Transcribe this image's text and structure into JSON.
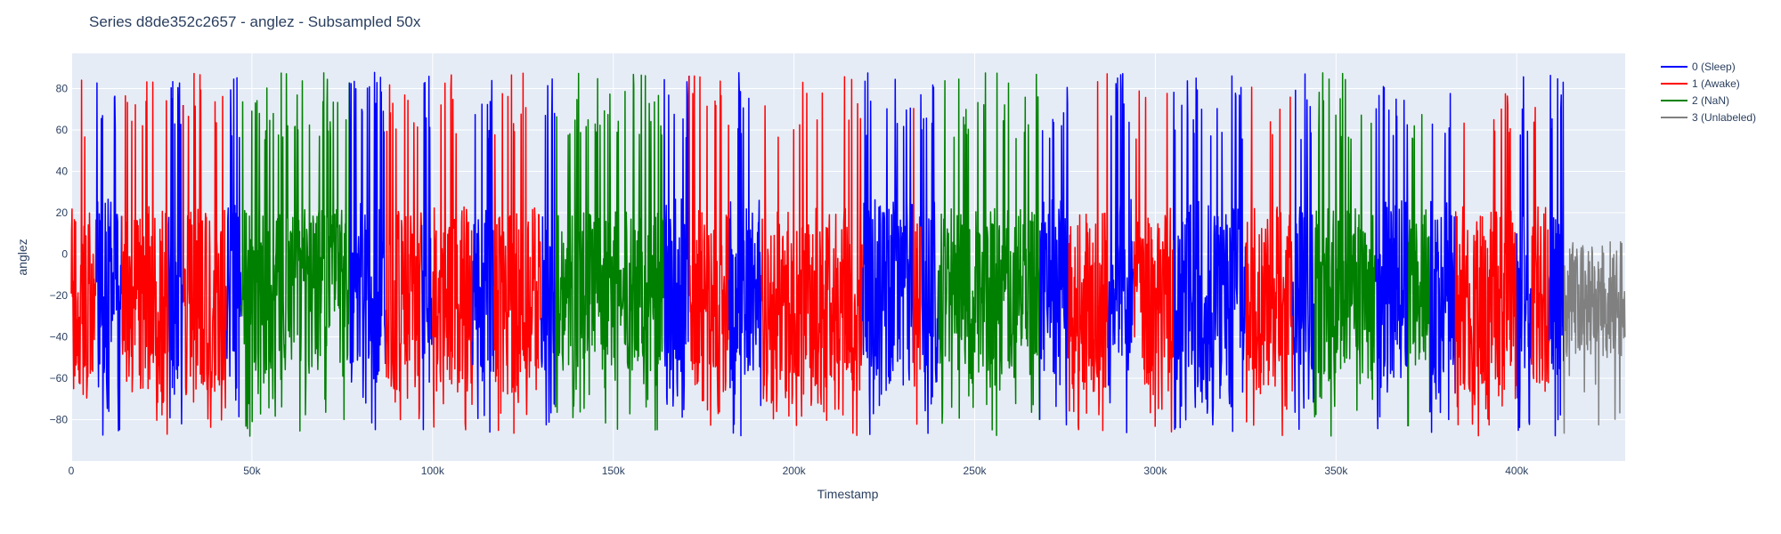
{
  "chart_data": {
    "type": "line",
    "title": "Series d8de352c2657 - anglez - Subsampled 50x",
    "xlabel": "Timestamp",
    "ylabel": "anglez",
    "xlim": [
      0,
      430000
    ],
    "ylim": [
      -100,
      97
    ],
    "x_ticks": [
      0,
      50000,
      100000,
      150000,
      200000,
      250000,
      300000,
      350000,
      400000
    ],
    "x_tick_labels": [
      "0",
      "50k",
      "100k",
      "150k",
      "200k",
      "250k",
      "300k",
      "350k",
      "400k"
    ],
    "y_ticks": [
      -80,
      -60,
      -40,
      -20,
      0,
      20,
      40,
      60,
      80
    ],
    "y_tick_labels": [
      "−80",
      "−60",
      "−40",
      "−20",
      "0",
      "20",
      "40",
      "60",
      "80"
    ],
    "grid": true,
    "legend_position": "right",
    "series": [
      {
        "name": "0 (Sleep)",
        "color": "#0000ff"
      },
      {
        "name": "1 (Awake)",
        "color": "#ff0000"
      },
      {
        "name": "2 (NaN)",
        "color": "#008000"
      },
      {
        "name": "3 (Unlabeled)",
        "color": "#808080"
      }
    ],
    "segments": [
      {
        "series": 1,
        "x": [
          0,
          7000
        ]
      },
      {
        "series": 0,
        "x": [
          7000,
          14000
        ]
      },
      {
        "series": 1,
        "x": [
          14000,
          27000
        ]
      },
      {
        "series": 0,
        "x": [
          27000,
          31000
        ]
      },
      {
        "series": 1,
        "x": [
          31000,
          43000
        ]
      },
      {
        "series": 0,
        "x": [
          43000,
          47000
        ]
      },
      {
        "series": 2,
        "x": [
          47000,
          77000
        ]
      },
      {
        "series": 0,
        "x": [
          77000,
          87000
        ]
      },
      {
        "series": 1,
        "x": [
          87000,
          97000
        ]
      },
      {
        "series": 0,
        "x": [
          97000,
          100000
        ]
      },
      {
        "series": 1,
        "x": [
          100000,
          111000
        ]
      },
      {
        "series": 0,
        "x": [
          111000,
          117000
        ]
      },
      {
        "series": 1,
        "x": [
          117000,
          130000
        ]
      },
      {
        "series": 0,
        "x": [
          130000,
          134000
        ]
      },
      {
        "series": 2,
        "x": [
          134000,
          164000
        ]
      },
      {
        "series": 0,
        "x": [
          164000,
          171000
        ]
      },
      {
        "series": 1,
        "x": [
          171000,
          182000
        ]
      },
      {
        "series": 0,
        "x": [
          182000,
          191000
        ]
      },
      {
        "series": 1,
        "x": [
          191000,
          219000
        ]
      },
      {
        "series": 0,
        "x": [
          219000,
          233000
        ]
      },
      {
        "series": 1,
        "x": [
          233000,
          235000
        ]
      },
      {
        "series": 0,
        "x": [
          235000,
          240000
        ]
      },
      {
        "series": 2,
        "x": [
          240000,
          268000
        ]
      },
      {
        "series": 0,
        "x": [
          268000,
          276000
        ]
      },
      {
        "series": 1,
        "x": [
          276000,
          287000
        ]
      },
      {
        "series": 0,
        "x": [
          287000,
          294000
        ]
      },
      {
        "series": 1,
        "x": [
          294000,
          305000
        ]
      },
      {
        "series": 0,
        "x": [
          305000,
          325000
        ]
      },
      {
        "series": 1,
        "x": [
          325000,
          338000
        ]
      },
      {
        "series": 0,
        "x": [
          338000,
          344000
        ]
      },
      {
        "series": 2,
        "x": [
          344000,
          361000
        ]
      },
      {
        "series": 0,
        "x": [
          361000,
          370000
        ]
      },
      {
        "series": 2,
        "x": [
          370000,
          376000
        ]
      },
      {
        "series": 0,
        "x": [
          376000,
          383000
        ]
      },
      {
        "series": 1,
        "x": [
          383000,
          400000
        ]
      },
      {
        "series": 0,
        "x": [
          400000,
          404000
        ]
      },
      {
        "series": 1,
        "x": [
          404000,
          409000
        ]
      },
      {
        "series": 0,
        "x": [
          409000,
          413000
        ]
      },
      {
        "series": 3,
        "x": [
          413000,
          430000
        ]
      }
    ]
  }
}
